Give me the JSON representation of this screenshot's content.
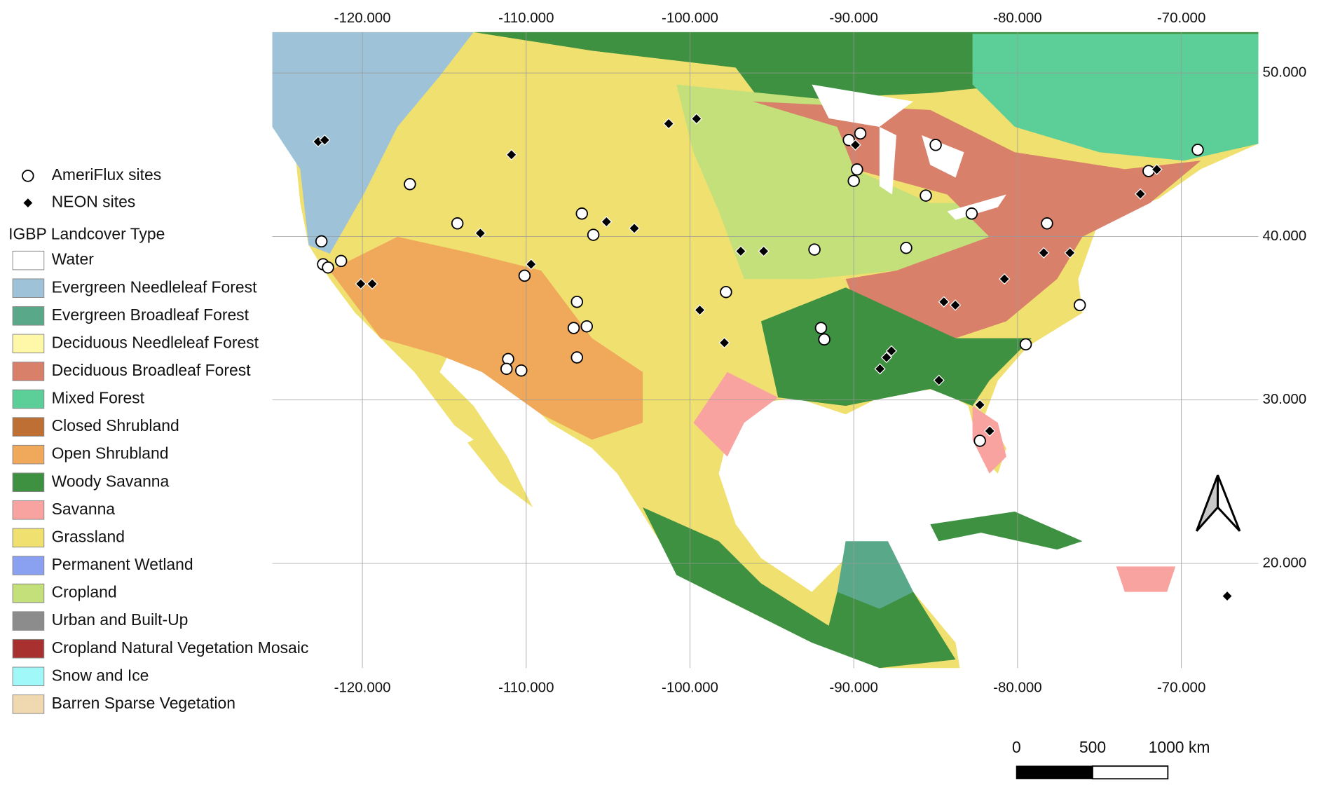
{
  "map": {
    "xlim": [
      -125.5,
      -65.3
    ],
    "ylim": [
      13.6,
      52.5
    ],
    "lon_ticks": [
      {
        "value": -120,
        "label": "-120.000"
      },
      {
        "value": -110,
        "label": "-110.000"
      },
      {
        "value": -100,
        "label": "-100.000"
      },
      {
        "value": -90,
        "label": "-90.000"
      },
      {
        "value": -80,
        "label": "-80.000"
      },
      {
        "value": -70,
        "label": "-70.000"
      }
    ],
    "lat_ticks": [
      {
        "value": 50,
        "label": "50.000"
      },
      {
        "value": 40,
        "label": "40.000"
      },
      {
        "value": 30,
        "label": "30.000"
      },
      {
        "value": 20,
        "label": "20.000"
      }
    ],
    "sites": [
      {
        "name": "AmeriFlux sites",
        "marker": "circle",
        "points": [
          [
            -117.1,
            43.2
          ],
          [
            -114.2,
            40.8
          ],
          [
            -106.6,
            41.4
          ],
          [
            -105.9,
            40.1
          ],
          [
            -122.5,
            39.7
          ],
          [
            -122.4,
            38.3
          ],
          [
            -122.1,
            38.1
          ],
          [
            -121.3,
            38.5
          ],
          [
            -110.1,
            37.6
          ],
          [
            -106.9,
            36.0
          ],
          [
            -107.1,
            34.4
          ],
          [
            -106.3,
            34.5
          ],
          [
            -111.1,
            32.5
          ],
          [
            -111.2,
            31.9
          ],
          [
            -110.3,
            31.8
          ],
          [
            -106.9,
            32.6
          ],
          [
            -97.8,
            36.6
          ],
          [
            -90.3,
            45.9
          ],
          [
            -89.6,
            46.3
          ],
          [
            -89.8,
            44.1
          ],
          [
            -90.0,
            43.4
          ],
          [
            -85.0,
            45.6
          ],
          [
            -85.6,
            42.5
          ],
          [
            -82.8,
            41.4
          ],
          [
            -92.4,
            39.2
          ],
          [
            -86.8,
            39.3
          ],
          [
            -92.0,
            34.4
          ],
          [
            -91.8,
            33.7
          ],
          [
            -78.2,
            40.8
          ],
          [
            -76.2,
            35.8
          ],
          [
            -79.5,
            33.4
          ],
          [
            -82.3,
            27.5
          ],
          [
            -72.0,
            44.0
          ],
          [
            -69.0,
            45.3
          ]
        ]
      },
      {
        "name": "NEON sites",
        "marker": "diamond",
        "points": [
          [
            -122.7,
            45.8
          ],
          [
            -122.3,
            45.9
          ],
          [
            -110.9,
            45.0
          ],
          [
            -101.3,
            46.9
          ],
          [
            -99.6,
            47.2
          ],
          [
            -112.8,
            40.2
          ],
          [
            -105.1,
            40.9
          ],
          [
            -103.4,
            40.5
          ],
          [
            -109.7,
            38.3
          ],
          [
            -120.1,
            37.1
          ],
          [
            -119.4,
            37.1
          ],
          [
            -96.9,
            39.1
          ],
          [
            -95.5,
            39.1
          ],
          [
            -99.4,
            35.5
          ],
          [
            -97.9,
            33.5
          ],
          [
            -89.9,
            45.6
          ],
          [
            -84.5,
            36.0
          ],
          [
            -83.8,
            35.8
          ],
          [
            -80.8,
            37.4
          ],
          [
            -84.8,
            31.2
          ],
          [
            -88.4,
            31.9
          ],
          [
            -88.0,
            32.6
          ],
          [
            -87.7,
            33.0
          ],
          [
            -82.3,
            29.7
          ],
          [
            -81.7,
            28.1
          ],
          [
            -78.4,
            39.0
          ],
          [
            -76.8,
            39.0
          ],
          [
            -72.5,
            42.6
          ],
          [
            -71.5,
            44.1
          ],
          [
            -67.2,
            18.0
          ]
        ]
      }
    ],
    "legend": {
      "title": "IGBP Landcover Type",
      "classes": [
        {
          "name": "Water",
          "color": "#ffffff"
        },
        {
          "name": "Evergreen Needleleaf Forest",
          "color": "#9ec3d9"
        },
        {
          "name": "Evergreen Broadleaf Forest",
          "color": "#5aa88a"
        },
        {
          "name": "Deciduous Needleleaf Forest",
          "color": "#fef8a8"
        },
        {
          "name": "Deciduous Broadleaf Forest",
          "color": "#d9806a"
        },
        {
          "name": "Mixed Forest",
          "color": "#5ccf98"
        },
        {
          "name": "Closed Shrubland",
          "color": "#bd6f34"
        },
        {
          "name": "Open Shrubland",
          "color": "#f0a85a"
        },
        {
          "name": "Woody Savanna",
          "color": "#3d9140"
        },
        {
          "name": "Savanna",
          "color": "#f9a3a0"
        },
        {
          "name": "Grassland",
          "color": "#f0e070"
        },
        {
          "name": "Permanent Wetland",
          "color": "#8aa0f0"
        },
        {
          "name": "Cropland",
          "color": "#c3e07a"
        },
        {
          "name": "Urban and Built-Up",
          "color": "#8c8c8c"
        },
        {
          "name": "Cropland Natural Vegetation Mosaic",
          "color": "#a8302e"
        },
        {
          "name": "Snow and Ice",
          "color": "#a0f8f8"
        },
        {
          "name": "Barren Sparse Vegetation",
          "color": "#f0d9b0"
        }
      ]
    },
    "scale_bar": {
      "labels": [
        "0",
        "500",
        "1000 km"
      ]
    }
  }
}
